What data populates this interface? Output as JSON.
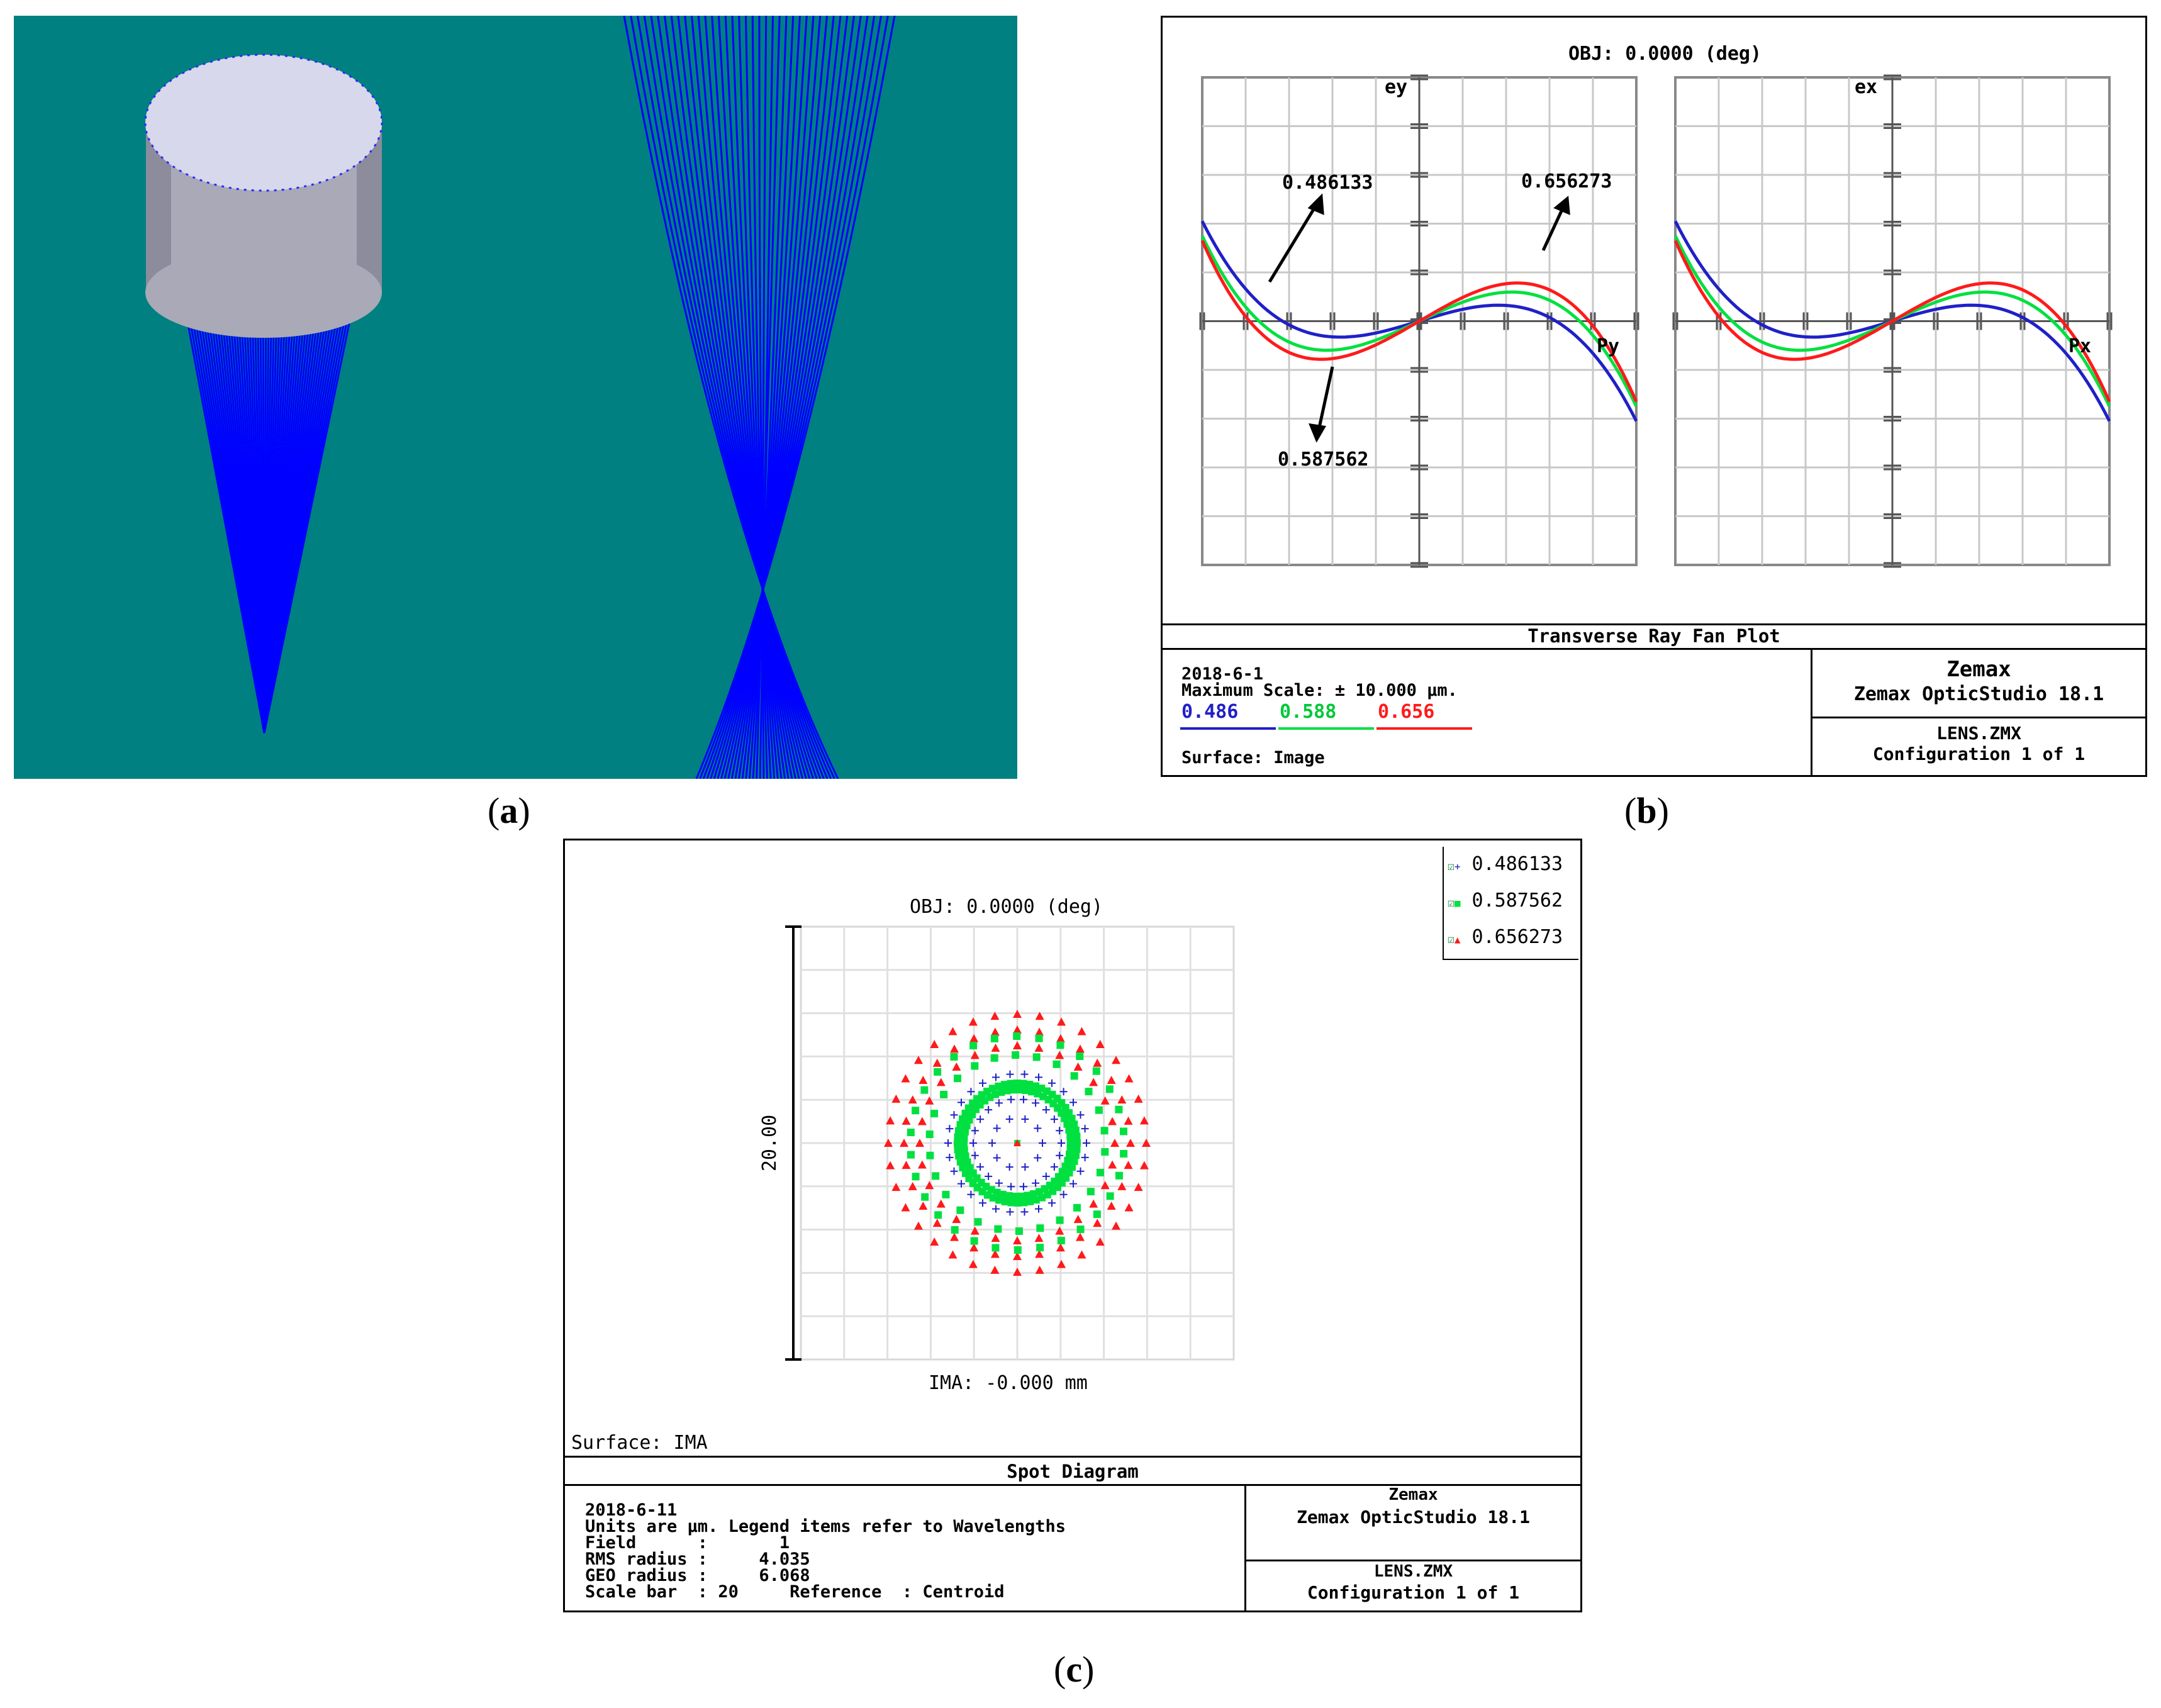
{
  "panel_labels": {
    "a": "a",
    "b": "b",
    "c": "c"
  },
  "colors": {
    "background_3d": "#008080",
    "ray": "#0000ff",
    "lens_top": "#d8d8ec",
    "lens_side": "#a9a9b8",
    "wave_486": "#2020c8",
    "wave_588": "#00e040",
    "wave_656": "#ff1a1a"
  },
  "fan_plot": {
    "obj_title": "OBJ: 0.0000 (deg)",
    "left_axis_label": "ey",
    "right_axis_label": "ex",
    "left_h_label": "Py",
    "right_h_label": "Px",
    "annotations": {
      "blue": "0.486133",
      "red": "0.656273",
      "green": "0.587562"
    },
    "footer_title": "Transverse Ray Fan Plot",
    "date": "2018-6-1",
    "max_scale": "Maximum Scale: ± 10.000 µm.",
    "legend": [
      {
        "label": "0.486",
        "color": "#2020c8"
      },
      {
        "label": "0.588",
        "color": "#00e040"
      },
      {
        "label": "0.656",
        "color": "#ff1a1a"
      }
    ],
    "surface": "Surface: Image",
    "brand": "Zemax",
    "product": "Zemax OpticStudio 18.1",
    "file": "LENS.ZMX",
    "config": "Configuration 1 of 1"
  },
  "spot_diagram": {
    "obj_title": "OBJ: 0.0000 (deg)",
    "scale_label": "20.00",
    "ima_label": "IMA: -0.000 mm",
    "surface": "Surface: IMA",
    "legend": [
      {
        "label": "0.486133",
        "color": "#2020c8",
        "marker": "+"
      },
      {
        "label": "0.587562",
        "color": "#00e040",
        "marker": "■"
      },
      {
        "label": "0.656273",
        "color": "#ff1a1a",
        "marker": "▲"
      }
    ],
    "footer_title": "Spot Diagram",
    "date": "2018-6-11",
    "units_line": "Units are µm. Legend items refer to Wavelengths",
    "field_line": "Field      :       1",
    "rms_line": "RMS radius :     4.035",
    "geo_line": "GEO radius :     6.068",
    "scale_line": "Scale bar  : 20     Reference  : Centroid",
    "brand": "Zemax",
    "product": "Zemax OpticStudio 18.1",
    "file": "LENS.ZMX",
    "config": "Configuration 1 of 1"
  }
}
